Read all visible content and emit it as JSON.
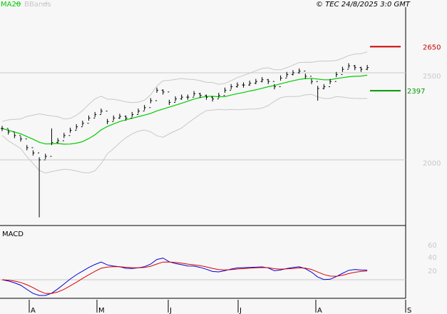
{
  "header": {
    "legend_ma": "MA20",
    "legend_bbands": "BBands",
    "copyright": "© TEC 24/8/2025 3:0 GMT"
  },
  "colors": {
    "ma": "#00cc00",
    "bbands": "#c8c8c8",
    "bars": "#000000",
    "resistance": "#cc0000",
    "support": "#009900",
    "macd": "#0000dd",
    "signal": "#dd0000"
  },
  "chart_data": [
    {
      "type": "ohlc",
      "title": "",
      "ylim": [
        1650,
        2800
      ],
      "y_ticks": [
        2000,
        2500
      ],
      "y_tick_labels": [
        "2000",
        "2500"
      ],
      "x_tick_labels": [
        "A",
        "M",
        "J",
        "J",
        "A",
        "S"
      ],
      "levels": [
        {
          "name": "resistance",
          "value": 2650,
          "label": "2650"
        },
        {
          "name": "support",
          "value": 2397,
          "label": "2397"
        }
      ],
      "closes": [
        2180,
        2160,
        2140,
        2120,
        2070,
        2040,
        2000,
        2020,
        2100,
        2110,
        2140,
        2170,
        2190,
        2210,
        2240,
        2260,
        2280,
        2220,
        2240,
        2250,
        2240,
        2260,
        2280,
        2300,
        2340,
        2400,
        2390,
        2330,
        2350,
        2360,
        2360,
        2380,
        2370,
        2360,
        2350,
        2370,
        2400,
        2420,
        2430,
        2430,
        2440,
        2450,
        2460,
        2450,
        2420,
        2470,
        2490,
        2500,
        2510,
        2480,
        2450,
        2410,
        2420,
        2450,
        2490,
        2520,
        2540,
        2530,
        2520,
        2530
      ],
      "wicks": [
        {
          "i": 6,
          "low": 1670
        },
        {
          "i": 8,
          "high": 2180
        },
        {
          "i": 51,
          "low": 2340
        }
      ],
      "indicators": [
        "MA20",
        "BBands"
      ]
    },
    {
      "type": "line",
      "title": "MACD",
      "y_ticks": [
        20,
        40,
        60
      ],
      "y_tick_labels": [
        "20",
        "40",
        "60"
      ],
      "series": [
        {
          "name": "MACD",
          "color": "#0000dd"
        },
        {
          "name": "Signal",
          "color": "#dd0000"
        }
      ]
    }
  ]
}
